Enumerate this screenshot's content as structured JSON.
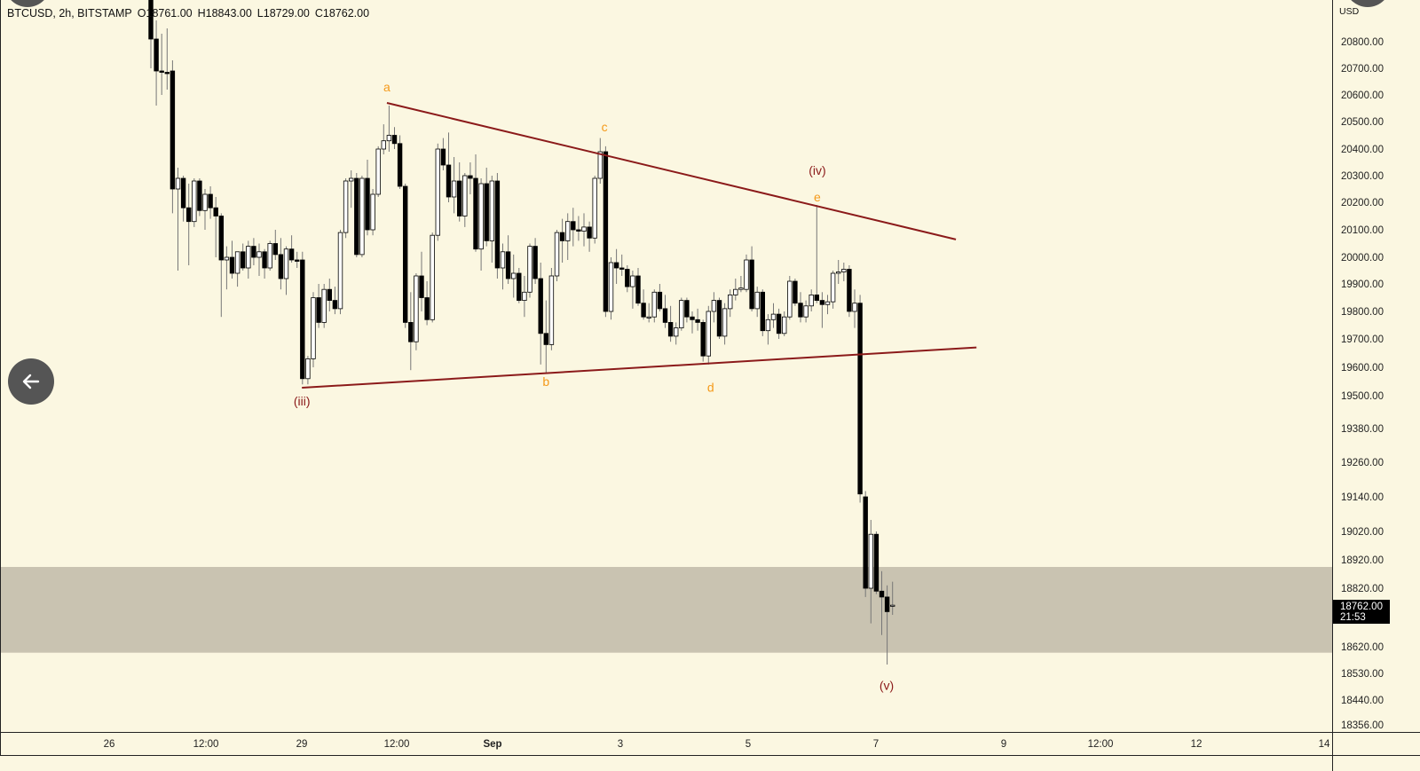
{
  "header": {
    "symbol": "BTCUSD, 2h, BITSTAMP",
    "open": "O18761.00",
    "high": "H18843.00",
    "low": "L18729.00",
    "close": "C18762.00"
  },
  "price_axis": {
    "currency": "USD"
  },
  "current_price": {
    "price": "18762.00",
    "countdown": "21:53"
  },
  "colors": {
    "background": "#fbf7e1",
    "trendline": "#8b1a1a",
    "wave_label_minor": "#f59a1a",
    "wave_label_major": "#8b1a1a",
    "zone": "#c9c3b1",
    "candle_up": "#ffffff",
    "candle_down": "#000000"
  },
  "chart_data": {
    "type": "candlestick",
    "title": "BTCUSD, 2h, BITSTAMP",
    "ylabel": "USD",
    "y_ticks": [
      20800,
      20700,
      20600,
      20500,
      20400,
      20300,
      20200,
      20100,
      20000,
      19900,
      19800,
      19700,
      19600,
      19500,
      19380,
      19260,
      19140,
      19020,
      18920,
      18820,
      18620,
      18530,
      18440,
      18356
    ],
    "y_tick_labels": [
      "20800.00",
      "20700.00",
      "20600.00",
      "20500.00",
      "20400.00",
      "20300.00",
      "20200.00",
      "20100.00",
      "20000.00",
      "19900.00",
      "19800.00",
      "19700.00",
      "19600.00",
      "19500.00",
      "19380.00",
      "19260.00",
      "19140.00",
      "19020.00",
      "18920.00",
      "18820.00",
      "18620.00",
      "18530.00",
      "18440.00",
      "18356.00"
    ],
    "x_tick_labels": [
      "26",
      "12:00",
      "29",
      "12:00",
      "Sep",
      "3",
      "5",
      "7",
      "9",
      "12:00",
      "12",
      "14"
    ],
    "ohlc": [
      [
        21000,
        21050,
        20700,
        20810
      ],
      [
        20810,
        20880,
        20560,
        20690
      ],
      [
        20690,
        20830,
        20600,
        20685
      ],
      [
        20685,
        20850,
        20620,
        20680
      ],
      [
        20690,
        20730,
        20160,
        20250
      ],
      [
        20250,
        20330,
        19950,
        20290
      ],
      [
        20290,
        20300,
        20130,
        20180
      ],
      [
        20180,
        20270,
        19970,
        20130
      ],
      [
        20130,
        20290,
        20110,
        20280
      ],
      [
        20280,
        20290,
        20150,
        20170
      ],
      [
        20170,
        20250,
        20100,
        20230
      ],
      [
        20230,
        20260,
        20140,
        20180
      ],
      [
        20180,
        20220,
        20000,
        20150
      ],
      [
        20150,
        20160,
        19780,
        19990
      ],
      [
        19990,
        20040,
        19880,
        20000
      ],
      [
        20000,
        20060,
        19920,
        19940
      ],
      [
        19940,
        20020,
        19890,
        20020
      ],
      [
        20020,
        20050,
        19950,
        19960
      ],
      [
        19960,
        20060,
        19920,
        20040
      ],
      [
        20040,
        20070,
        19970,
        20000
      ],
      [
        20000,
        20050,
        19930,
        20020
      ],
      [
        20020,
        20030,
        19920,
        19960
      ],
      [
        19960,
        20060,
        19950,
        20050
      ],
      [
        20050,
        20100,
        19990,
        20010
      ],
      [
        20010,
        20070,
        19880,
        19920
      ],
      [
        19920,
        20040,
        19860,
        20030
      ],
      [
        20030,
        20080,
        19980,
        19990
      ],
      [
        19990,
        20020,
        19960,
        19985
      ],
      [
        19990,
        20020,
        19540,
        19560
      ],
      [
        19560,
        19640,
        19540,
        19630
      ],
      [
        19630,
        19870,
        19600,
        19850
      ],
      [
        19850,
        19900,
        19740,
        19760
      ],
      [
        19760,
        19900,
        19740,
        19880
      ],
      [
        19880,
        19920,
        19800,
        19840
      ],
      [
        19840,
        19890,
        19790,
        19810
      ],
      [
        19810,
        20100,
        19790,
        20090
      ],
      [
        20090,
        20290,
        20070,
        20280
      ],
      [
        20280,
        20320,
        20180,
        20290
      ],
      [
        20290,
        20310,
        20000,
        20010
      ],
      [
        20010,
        20300,
        20000,
        20290
      ],
      [
        20290,
        20360,
        20080,
        20100
      ],
      [
        20100,
        20250,
        20080,
        20230
      ],
      [
        20230,
        20410,
        20220,
        20400
      ],
      [
        20400,
        20490,
        20380,
        20430
      ],
      [
        20430,
        20560,
        20390,
        20450
      ],
      [
        20450,
        20480,
        20400,
        20420
      ],
      [
        20420,
        20450,
        20250,
        20260
      ],
      [
        20260,
        20270,
        19740,
        19760
      ],
      [
        19760,
        19870,
        19590,
        19690
      ],
      [
        19690,
        19940,
        19660,
        19930
      ],
      [
        19930,
        20020,
        19800,
        19850
      ],
      [
        19850,
        19910,
        19750,
        19770
      ],
      [
        19770,
        20090,
        19760,
        20080
      ],
      [
        20080,
        20420,
        20060,
        20400
      ],
      [
        20400,
        20440,
        20320,
        20340
      ],
      [
        20340,
        20460,
        20200,
        20220
      ],
      [
        20220,
        20370,
        20160,
        20280
      ],
      [
        20280,
        20350,
        20130,
        20150
      ],
      [
        20150,
        20310,
        20110,
        20300
      ],
      [
        20300,
        20350,
        20230,
        20290
      ],
      [
        20290,
        20380,
        20020,
        20030
      ],
      [
        20030,
        20290,
        19950,
        20270
      ],
      [
        20270,
        20330,
        20040,
        20060
      ],
      [
        20060,
        20300,
        19980,
        20280
      ],
      [
        20280,
        20310,
        19920,
        19960
      ],
      [
        19960,
        20050,
        19880,
        20020
      ],
      [
        20020,
        20080,
        19900,
        19920
      ],
      [
        19920,
        20010,
        19850,
        19940
      ],
      [
        19940,
        19960,
        19830,
        19840
      ],
      [
        19840,
        19930,
        19780,
        19870
      ],
      [
        19870,
        20050,
        19850,
        20040
      ],
      [
        20040,
        20070,
        19900,
        19920
      ],
      [
        19920,
        19980,
        19610,
        19720
      ],
      [
        19720,
        19840,
        19580,
        19680
      ],
      [
        19680,
        19960,
        19660,
        19930
      ],
      [
        19930,
        20100,
        19910,
        20090
      ],
      [
        20090,
        20140,
        19980,
        20060
      ],
      [
        20060,
        20160,
        19990,
        20130
      ],
      [
        20130,
        20180,
        20040,
        20100
      ],
      [
        20100,
        20150,
        20060,
        20095
      ],
      [
        20095,
        20160,
        20040,
        20110
      ],
      [
        20110,
        20130,
        20020,
        20070
      ],
      [
        20070,
        20300,
        20050,
        20290
      ],
      [
        20290,
        20440,
        20270,
        20390
      ],
      [
        20390,
        20410,
        19780,
        19800
      ],
      [
        19800,
        20000,
        19770,
        19980
      ],
      [
        19980,
        20030,
        19900,
        19960
      ],
      [
        19960,
        20010,
        19930,
        19955
      ],
      [
        19955,
        19970,
        19870,
        19890
      ],
      [
        19890,
        19950,
        19810,
        19930
      ],
      [
        19930,
        19960,
        19820,
        19830
      ],
      [
        19830,
        19880,
        19770,
        19780
      ],
      [
        19780,
        19830,
        19760,
        19780
      ],
      [
        19780,
        19880,
        19760,
        19870
      ],
      [
        19870,
        19900,
        19800,
        19810
      ],
      [
        19810,
        19860,
        19740,
        19760
      ],
      [
        19760,
        19820,
        19690,
        19710
      ],
      [
        19710,
        19760,
        19680,
        19740
      ],
      [
        19740,
        19850,
        19730,
        19840
      ],
      [
        19840,
        19850,
        19760,
        19780
      ],
      [
        19780,
        19800,
        19720,
        19770
      ],
      [
        19770,
        19810,
        19730,
        19760
      ],
      [
        19760,
        19770,
        19620,
        19640
      ],
      [
        19640,
        19820,
        19610,
        19800
      ],
      [
        19800,
        19870,
        19760,
        19840
      ],
      [
        19840,
        19850,
        19700,
        19710
      ],
      [
        19710,
        19830,
        19680,
        19810
      ],
      [
        19810,
        19880,
        19780,
        19860
      ],
      [
        19860,
        19920,
        19840,
        19880
      ],
      [
        19880,
        19930,
        19870,
        19885
      ],
      [
        19880,
        20010,
        19870,
        19990
      ],
      [
        19990,
        20040,
        19800,
        19810
      ],
      [
        19810,
        19890,
        19780,
        19870
      ],
      [
        19870,
        19880,
        19710,
        19730
      ],
      [
        19730,
        19790,
        19680,
        19770
      ],
      [
        19770,
        19830,
        19740,
        19790
      ],
      [
        19790,
        19810,
        19700,
        19720
      ],
      [
        19720,
        19800,
        19710,
        19780
      ],
      [
        19780,
        19930,
        19770,
        19910
      ],
      [
        19910,
        19920,
        19820,
        19830
      ],
      [
        19830,
        19870,
        19760,
        19780
      ],
      [
        19780,
        19840,
        19760,
        19820
      ],
      [
        19820,
        19880,
        19800,
        19860
      ],
      [
        19860,
        20190,
        19830,
        19840
      ],
      [
        19840,
        19870,
        19740,
        19825
      ],
      [
        19825,
        19860,
        19790,
        19835
      ],
      [
        19835,
        19950,
        19810,
        19940
      ],
      [
        19940,
        19990,
        19900,
        19945
      ],
      [
        19945,
        19980,
        19910,
        19955
      ],
      [
        19955,
        19970,
        19780,
        19800
      ],
      [
        19800,
        19880,
        19740,
        19830
      ],
      [
        19830,
        19860,
        19120,
        19150
      ],
      [
        19140,
        19160,
        18790,
        18820
      ],
      [
        18820,
        19060,
        18700,
        19010
      ],
      [
        19010,
        19020,
        18800,
        18810
      ],
      [
        18810,
        18880,
        18660,
        18790
      ],
      [
        18790,
        18830,
        18560,
        18740
      ],
      [
        18761,
        18843,
        18729,
        18762
      ]
    ],
    "trendlines": [
      {
        "from": {
          "bar": 43.6,
          "price": 20570
        },
        "to": {
          "bar": 148.7,
          "price": 20065
        }
      },
      {
        "from": {
          "bar": 27.9,
          "price": 19528
        },
        "to": {
          "bar": 152.5,
          "price": 19670
        }
      }
    ],
    "zone": {
      "price_top": 18895,
      "price_bottom": 18600
    },
    "annotations": [
      {
        "text": "a",
        "bar": 43.6,
        "price": 20630,
        "kind": "minor"
      },
      {
        "text": "b",
        "bar": 73,
        "price": 19550,
        "kind": "minor"
      },
      {
        "text": "c",
        "bar": 83.8,
        "price": 20480,
        "kind": "minor"
      },
      {
        "text": "d",
        "bar": 103.4,
        "price": 19530,
        "kind": "minor"
      },
      {
        "text": "e",
        "bar": 123.1,
        "price": 20220,
        "kind": "minor"
      },
      {
        "text": "(iii)",
        "bar": 27.9,
        "price": 19480,
        "kind": "major"
      },
      {
        "text": "(iv)",
        "bar": 123.1,
        "price": 20320,
        "kind": "major"
      },
      {
        "text": "(v)",
        "bar": 135.9,
        "price": 18490,
        "kind": "major"
      }
    ]
  }
}
